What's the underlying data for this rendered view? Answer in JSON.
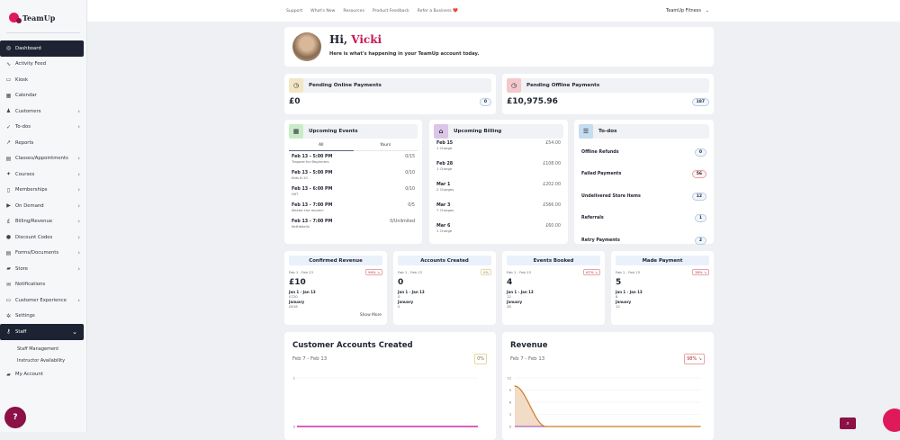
{
  "brand": {
    "name": "TeamUp",
    "accent": "#e0195a",
    "dark": "#1d2333"
  },
  "sidebar": {
    "items": [
      {
        "label": "Dashboard",
        "icon": "dashboard-icon",
        "active": true
      },
      {
        "label": "Activity Feed",
        "icon": "activity-icon"
      },
      {
        "label": "Kiosk",
        "icon": "kiosk-icon"
      },
      {
        "label": "Calendar",
        "icon": "calendar-icon"
      },
      {
        "label": "Customers",
        "icon": "customers-icon",
        "chevron": true
      },
      {
        "label": "To-dos",
        "icon": "todos-icon",
        "chevron": true
      },
      {
        "label": "Reports",
        "icon": "reports-icon"
      },
      {
        "label": "Classes/Appointments",
        "icon": "classes-icon",
        "chevron": true
      },
      {
        "label": "Courses",
        "icon": "courses-icon",
        "chevron": true
      },
      {
        "label": "Memberships",
        "icon": "memberships-icon",
        "chevron": true
      },
      {
        "label": "On Demand",
        "icon": "on-demand-icon",
        "chevron": true
      },
      {
        "label": "Billing/Revenue",
        "icon": "pound-icon",
        "chevron": true
      },
      {
        "label": "Discount Codes",
        "icon": "discount-icon",
        "chevron": true
      },
      {
        "label": "Forms/Documents",
        "icon": "forms-icon",
        "chevron": true
      },
      {
        "label": "Store",
        "icon": "store-icon",
        "chevron": true
      },
      {
        "label": "Notifications",
        "icon": "notifications-icon"
      },
      {
        "label": "Customer Experience",
        "icon": "monitor-icon",
        "chevron": true
      },
      {
        "label": "Settings",
        "icon": "gear-icon"
      },
      {
        "label": "Staff",
        "icon": "key-icon",
        "expanded": true,
        "children": [
          "Staff Management",
          "Instructor Availability"
        ]
      },
      {
        "label": "My Account",
        "icon": "lock-icon"
      }
    ]
  },
  "topbar": {
    "links": [
      "Support",
      "What's New",
      "Resources",
      "Product Feedback",
      "Refer a Business ❤️"
    ],
    "account": "TeamUp Fitness"
  },
  "greeting": {
    "hi": "Hi,",
    "name": "Vicki",
    "subtitle": "Here is what's happening in your TeamUp account today."
  },
  "pending": [
    {
      "title": "Pending Online Payments",
      "amount": "£0",
      "count": "0",
      "icon_color": "#f3e6c4"
    },
    {
      "title": "Pending Offline Payments",
      "amount": "£10,975.96",
      "count": "187",
      "icon_color": "#f3c9cc"
    }
  ],
  "events": {
    "title": "Upcoming Events",
    "tabs": [
      "All",
      "Yours"
    ],
    "items": [
      {
        "when": "Feb 13 - 5:00 PM",
        "name": "Trapeze for Beginners",
        "cap": "0/15"
      },
      {
        "when": "Feb 13 - 5:00 PM",
        "name": "Kids 6-10",
        "cap": "0/10"
      },
      {
        "when": "Feb 13 - 6:00 PM",
        "name": "HIIT",
        "cap": "0/10"
      },
      {
        "when": "Feb 13 - 7:00 PM",
        "name": "Master the moves!",
        "cap": "0/5"
      },
      {
        "when": "Feb 13 - 7:00 PM",
        "name": "Kettlebells",
        "cap": "0/Unlimited"
      }
    ]
  },
  "billing": {
    "title": "Upcoming Billing",
    "items": [
      {
        "date": "Feb 15",
        "charges": "1 Charge",
        "amount": "£54.00"
      },
      {
        "date": "Feb 28",
        "charges": "1 Charge",
        "amount": "£108.00"
      },
      {
        "date": "Mar 1",
        "charges": "2 Charges",
        "amount": "£202.00"
      },
      {
        "date": "Mar 3",
        "charges": "7 Charges",
        "amount": "£566.00"
      },
      {
        "date": "Mar 6",
        "charges": "1 Charge",
        "amount": "£60.00"
      }
    ]
  },
  "todos": {
    "title": "To-dos",
    "items": [
      {
        "label": "Offline Refunds",
        "count": "0"
      },
      {
        "label": "Failed Payments",
        "count": "56",
        "alert": true
      },
      {
        "label": "Undelivered Store Items",
        "count": "12"
      },
      {
        "label": "Referrals",
        "count": "1"
      },
      {
        "label": "Retry Payments",
        "count": "2"
      }
    ]
  },
  "stats": [
    {
      "title": "Confirmed Revenue",
      "range": "Feb 1 - Feb 13",
      "change": "99%",
      "value": "£10",
      "prev_label": "Jan 1 - Jan 13",
      "prev": "£720",
      "month_label": "January",
      "month": "£816",
      "more": "Show More",
      "trend": "down"
    },
    {
      "title": "Accounts Created",
      "range": "Feb 1 - Feb 13",
      "change": "0%",
      "value": "0",
      "prev_label": "Jan 1 - Jan 13",
      "prev": "0",
      "month_label": "January",
      "month": "0",
      "trend": "flat"
    },
    {
      "title": "Events Booked",
      "range": "Feb 1 - Feb 13",
      "change": "67%",
      "value": "4",
      "prev_label": "Jan 1 - Jan 13",
      "prev": "12",
      "month_label": "January",
      "month": "28",
      "trend": "down"
    },
    {
      "title": "Made Payment",
      "range": "Feb 1 - Feb 13",
      "change": "38%",
      "value": "5",
      "prev_label": "Jan 1 - Jan 13",
      "prev": "8",
      "month_label": "January",
      "month": "12",
      "trend": "down"
    }
  ],
  "charts": [
    {
      "title": "Customer Accounts Created",
      "range": "Feb 7 - Feb 13",
      "change": "0%",
      "yticks": [
        "1",
        "0"
      ]
    },
    {
      "title": "Revenue",
      "range": "Feb 7 - Feb 13",
      "change": "98%",
      "yticks": [
        "12",
        "9",
        "6",
        "3",
        "0"
      ],
      "values": [
        10,
        0,
        0,
        0,
        0,
        0,
        0
      ]
    }
  ]
}
